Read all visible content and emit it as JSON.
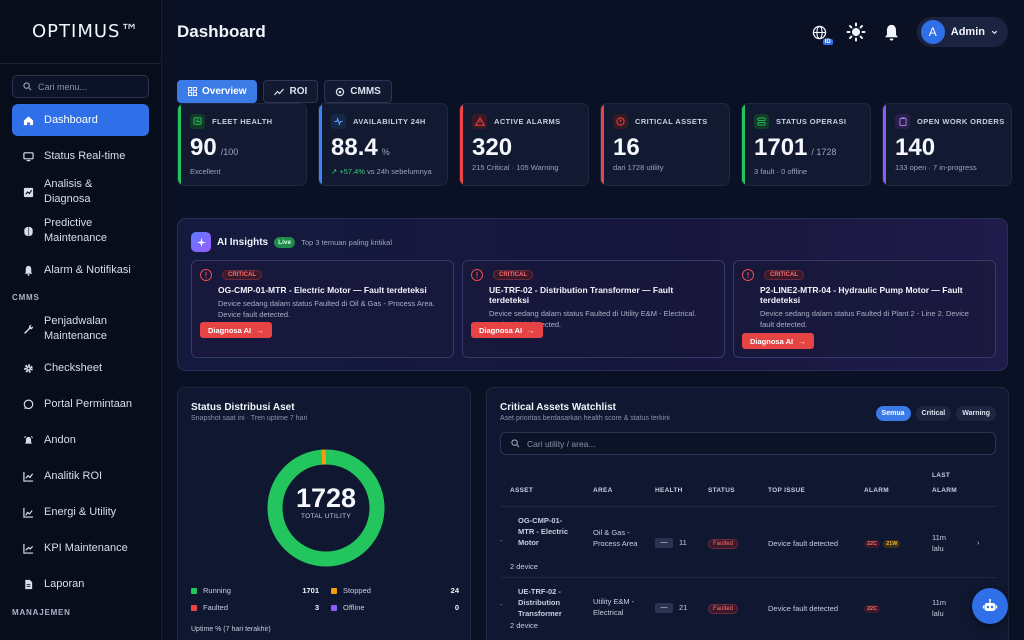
{
  "brand": {
    "logo": "OPTIMUS™"
  },
  "sidebar": {
    "search_placeholder": "Cari menu...",
    "items": [
      {
        "label": "Dashboard",
        "icon": "home-icon"
      },
      {
        "label": "Status Real-time",
        "icon": "monitor-icon"
      },
      {
        "label": "Analisis & Diagnosa",
        "icon": "chart-icon"
      },
      {
        "label": "Predictive Maintenance",
        "icon": "brain-icon"
      },
      {
        "label": "Alarm & Notifikasi",
        "icon": "bell-icon"
      }
    ],
    "section_cmms": "CMMS",
    "cmms_items": [
      {
        "label": "Penjadwalan Maintenance",
        "icon": "wrench-icon"
      },
      {
        "label": "Checksheet",
        "icon": "gear-icon"
      },
      {
        "label": "Portal Permintaan",
        "icon": "chat-icon"
      },
      {
        "label": "Andon",
        "icon": "alarm-icon"
      },
      {
        "label": "Analitik ROI",
        "icon": "line-chart-icon"
      },
      {
        "label": "Energi & Utility",
        "icon": "energy-icon"
      },
      {
        "label": "KPI Maintenance",
        "icon": "kpi-icon"
      },
      {
        "label": "Laporan",
        "icon": "document-icon"
      }
    ],
    "section_manajemen": "MANAJEMEN"
  },
  "header": {
    "title": "Dashboard",
    "lang": "ID",
    "user_initial": "A",
    "user_name": "Admin"
  },
  "tabs": [
    {
      "label": "Overview",
      "active": true
    },
    {
      "label": "ROI",
      "active": false
    },
    {
      "label": "CMMS",
      "active": false
    }
  ],
  "kpis": [
    {
      "title": "FLEET HEALTH",
      "value": "90",
      "unit": "/100",
      "sub": "Excellent",
      "color": "#22c55e"
    },
    {
      "title": "AVAILABILITY 24H",
      "value": "88.4",
      "unit": "%",
      "sub_up": "↗ +57.4%",
      "sub": " vs 24h sebelumnya",
      "color": "#3b82f6"
    },
    {
      "title": "ACTIVE ALARMS",
      "value": "320",
      "unit": "",
      "sub": "215 Critical · 105 Warning",
      "color": "#ef4444"
    },
    {
      "title": "CRITICAL ASSETS",
      "value": "16",
      "unit": "",
      "sub": "dari 1728 utility",
      "color": "#ef4444"
    },
    {
      "title": "STATUS OPERASI",
      "value": "1701",
      "unit": "/ 1728",
      "sub": "3 fault · 0 offline",
      "color": "#22c55e"
    },
    {
      "title": "OPEN WORK ORDERS",
      "value": "140",
      "unit": "",
      "sub": "133 open · 7 in-progress",
      "color": "#8b5cf6"
    }
  ],
  "ai": {
    "title": "AI Insights",
    "live": "Live",
    "note": "Top 3 temuan paling kritikal",
    "cards": [
      {
        "badge": "CRITICAL",
        "title": "OG-CMP-01-MTR - Electric Motor — Fault terdeteksi",
        "desc": "Device sedang dalam status Faulted di Oil & Gas - Process Area. Device fault detected.",
        "button": "Diagnosa AI"
      },
      {
        "badge": "CRITICAL",
        "title": "UE-TRF-02 - Distribution Transformer — Fault terdeteksi",
        "desc": "Device sedang dalam status Faulted di Utility E&M - Electrical. Device fault detected.",
        "button": "Diagnosa AI"
      },
      {
        "badge": "CRITICAL",
        "title": "P2-LINE2-MTR-04 - Hydraulic Pump Motor — Fault terdeteksi",
        "desc": "Device sedang dalam status Faulted di Plant 2 - Line 2. Device fault detected.",
        "button": "Diagnosa AI"
      }
    ]
  },
  "distribution": {
    "title": "Status Distribusi Aset",
    "subtitle": "Snapshot saat ini · Tren uptime 7 hari",
    "total": "1728",
    "total_label": "TOTAL UTILITY",
    "legend": [
      {
        "label": "Running",
        "value": "1701",
        "count": 1701,
        "color": "#22c55e"
      },
      {
        "label": "Stopped",
        "value": "24",
        "count": 24,
        "color": "#f59e0b"
      },
      {
        "label": "Faulted",
        "value": "3",
        "count": 3,
        "color": "#ef4444"
      },
      {
        "label": "Offline",
        "value": "0",
        "count": 0,
        "color": "#8b5cf6"
      }
    ],
    "uptime_label": "Uptime % (7 hari terakhir)"
  },
  "watchlist": {
    "title": "Critical Assets Watchlist",
    "subtitle": "Aset prioritas berdasarkan health score & status terkini",
    "filters": [
      {
        "label": "Semua",
        "active": true
      },
      {
        "label": "Critical",
        "active": false
      },
      {
        "label": "Warning",
        "active": false
      }
    ],
    "search_placeholder": "Cari utility / area...",
    "columns": [
      "ASSET",
      "AREA",
      "HEALTH",
      "STATUS",
      "TOP ISSUE",
      "ALARM",
      "LAST ALARM"
    ],
    "rows": [
      {
        "asset": "OG-CMP-01-MTR - Electric Motor",
        "devices": "2 device",
        "area": "Oil & Gas - Process Area",
        "health": "11",
        "status": "Faulted",
        "issue": "Device fault detected",
        "alarm_c": "22C",
        "alarm_w": "21W",
        "last": "11m lalu"
      },
      {
        "asset": "UE-TRF-02 - Distribution Transformer",
        "devices": "2 device",
        "area": "Utility E&M - Electrical",
        "health": "21",
        "status": "Faulted",
        "issue": "Device fault detected",
        "alarm_c": "22C",
        "alarm_w": "",
        "last": "11m lalu"
      }
    ]
  }
}
